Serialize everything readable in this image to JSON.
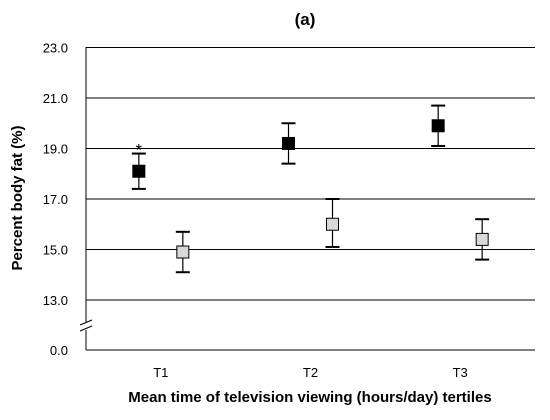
{
  "chart_data": {
    "type": "scatter",
    "panel_label": "(a)",
    "xlabel": "Mean time of television viewing (hours/day) tertiles",
    "ylabel": "Percent body fat (%)",
    "categories": [
      "T1",
      "T2",
      "T3"
    ],
    "y_ticks": [
      "0.0",
      "13.0",
      "15.0",
      "17.0",
      "19.0",
      "21.0",
      "23.0"
    ],
    "y_tick_values": [
      13,
      15,
      17,
      19,
      21,
      23
    ],
    "y_axis_break": true,
    "ylim": [
      11,
      23
    ],
    "grid": "horizontal",
    "series": [
      {
        "marker": "filled-square",
        "color": "#000000",
        "values": [
          18.1,
          19.2,
          19.9
        ],
        "error_low": [
          17.4,
          18.4,
          19.1
        ],
        "error_high": [
          18.8,
          20.0,
          20.7
        ]
      },
      {
        "marker": "open-square",
        "color": "#d9d9d9",
        "values": [
          14.9,
          16.0,
          15.4
        ],
        "error_low": [
          14.1,
          15.1,
          14.6
        ],
        "error_high": [
          15.7,
          17.0,
          16.2
        ]
      }
    ],
    "annotations": [
      {
        "text": "*",
        "category": "T1",
        "series": 0
      }
    ]
  }
}
